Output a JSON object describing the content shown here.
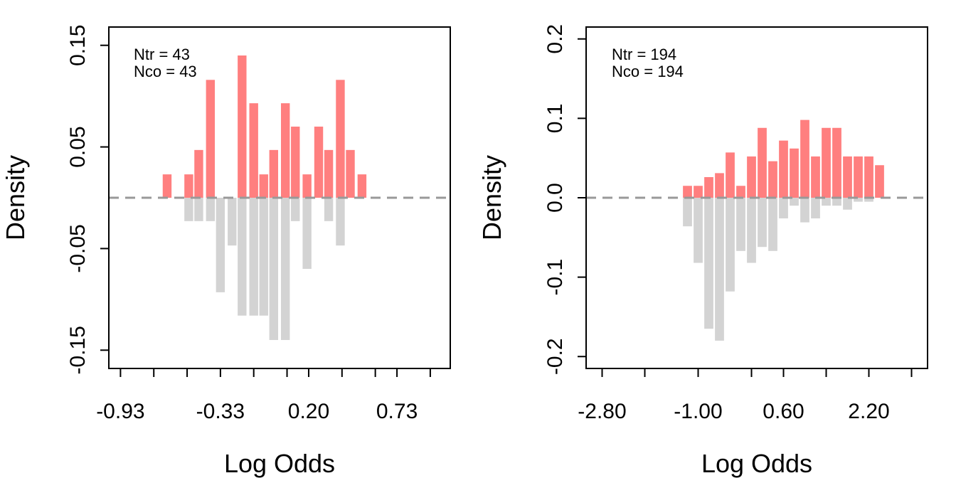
{
  "colors": {
    "treated_bar": "#FF7F7F",
    "control_bar": "#D3D3D3",
    "zero_line": "#999999",
    "frame": "#000000"
  },
  "chart_data": [
    {
      "type": "bar",
      "xlabel": "Log Odds",
      "ylabel": "Density",
      "annotations": [
        "Ntr =  43",
        "Nco =  43"
      ],
      "x_ticks": [
        -0.93,
        -0.73,
        -0.53,
        -0.33,
        -0.13,
        0.07,
        0.2,
        0.4,
        0.6,
        0.73,
        0.93
      ],
      "x_tick_labels": [
        "-0.93",
        "-0.33",
        "0.20",
        "0.73"
      ],
      "x_tick_labels_at": [
        -0.93,
        -0.33,
        0.2,
        0.73
      ],
      "xlim": [
        -1.0,
        1.05
      ],
      "ylim": [
        -0.168,
        0.168
      ],
      "y_ticks": [
        -0.15,
        -0.05,
        0.05,
        0.15
      ],
      "y_tick_labels": [
        "-0.15",
        "-0.05",
        "0.05",
        "0.15"
      ],
      "grid": false,
      "bar_width": 0.053,
      "series": [
        {
          "name": "Ntr",
          "x": [
            -0.65,
            -0.52,
            -0.46,
            -0.39,
            -0.2,
            -0.13,
            -0.07,
            -0.01,
            0.06,
            0.12,
            0.19,
            0.26,
            0.32,
            0.39,
            0.45,
            0.52
          ],
          "values": [
            0.023,
            0.023,
            0.047,
            0.116,
            0.14,
            0.093,
            0.023,
            0.047,
            0.093,
            0.07,
            0.023,
            0.07,
            0.047,
            0.116,
            0.047,
            0.023
          ]
        },
        {
          "name": "Nco",
          "x": [
            -0.52,
            -0.46,
            -0.39,
            -0.33,
            -0.26,
            -0.2,
            -0.13,
            -0.07,
            -0.01,
            0.06,
            0.12,
            0.19,
            0.32,
            0.39
          ],
          "values": [
            -0.023,
            -0.023,
            -0.023,
            -0.093,
            -0.047,
            -0.116,
            -0.116,
            -0.116,
            -0.14,
            -0.14,
            -0.023,
            -0.07,
            -0.023,
            -0.047
          ]
        }
      ]
    },
    {
      "type": "bar",
      "xlabel": "Log Odds",
      "ylabel": "Density",
      "annotations": [
        "Ntr =  194",
        "Nco =  194"
      ],
      "x_ticks": [
        -2.8,
        -2.0,
        -1.0,
        0.0,
        0.6,
        1.4,
        2.2,
        3.0
      ],
      "x_tick_labels": [
        "-2.80",
        "-1.00",
        "0.60",
        "2.20"
      ],
      "x_tick_labels_at": [
        -2.8,
        -1.0,
        0.6,
        2.2
      ],
      "xlim": [
        -3.1,
        3.3
      ],
      "ylim": [
        -0.215,
        0.215
      ],
      "y_ticks": [
        -0.2,
        -0.1,
        0.0,
        0.1,
        0.2
      ],
      "y_tick_labels": [
        "-0.2",
        "-0.1",
        "0.0",
        "0.1",
        "0.2"
      ],
      "grid": false,
      "bar_width": 0.17,
      "series": [
        {
          "name": "Ntr",
          "x": [
            -1.2,
            -1.0,
            -0.8,
            -0.6,
            -0.4,
            -0.2,
            0.0,
            0.2,
            0.4,
            0.6,
            0.8,
            1.0,
            1.2,
            1.4,
            1.6,
            1.8,
            2.0,
            2.2,
            2.4,
            2.6,
            2.8
          ],
          "values": [
            0.015,
            0.015,
            0.026,
            0.031,
            0.057,
            0.015,
            0.052,
            0.088,
            0.046,
            0.072,
            0.062,
            0.098,
            0.052,
            0.088,
            0.088,
            0.052,
            0.052,
            0.052,
            0.041,
            0,
            0
          ]
        },
        {
          "name": "Nco",
          "x": [
            -1.2,
            -1.0,
            -0.8,
            -0.6,
            -0.4,
            -0.2,
            0.0,
            0.2,
            0.4,
            0.6,
            0.8,
            1.0,
            1.2,
            1.4,
            1.6,
            1.8,
            2.0,
            2.2
          ],
          "values": [
            -0.036,
            -0.082,
            -0.165,
            -0.18,
            -0.118,
            -0.067,
            -0.082,
            -0.062,
            -0.067,
            -0.026,
            -0.01,
            -0.031,
            -0.026,
            -0.01,
            -0.01,
            -0.015,
            -0.005,
            -0.005
          ]
        }
      ]
    }
  ]
}
